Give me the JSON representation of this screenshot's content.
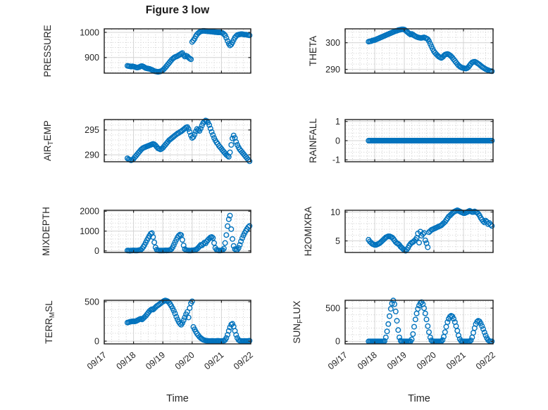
{
  "title": "Figure 3 low",
  "xlabel": "Time",
  "colors": {
    "marker": "#0072BD",
    "grid_major": "#d4d4d4",
    "grid_minor": "#c0c0c0",
    "axis": "#1f1f1f",
    "text": "#262626",
    "background": "#ffffff"
  },
  "chart_data": {
    "type": "scatter",
    "marker": "open-circle",
    "x_axis": {
      "label": "Time",
      "tick_labels": [
        "09/17",
        "09/18",
        "09/19",
        "09/20",
        "09/21",
        "09/22"
      ],
      "tick_values": [
        0,
        1,
        2,
        3,
        4,
        5
      ],
      "xlim": [
        0,
        5
      ],
      "minor_step": 0.25,
      "tick_label_rotation_deg": -40
    },
    "sample_t0": 0.7917,
    "sample_dt": 0.0416667,
    "subplots": [
      {
        "name": "PRESSURE",
        "label_parts": [
          {
            "text": "PRESSURE",
            "sub": false
          }
        ],
        "row": 0,
        "col": 0,
        "ylim": [
          838,
          1014
        ],
        "ytick_values": [
          900,
          1000
        ],
        "ytick_labels": [
          "900",
          "1000"
        ],
        "yminor_step": 20,
        "values": [
          867,
          866,
          865,
          864,
          865,
          864,
          863,
          861,
          860,
          861,
          863,
          865,
          866,
          864,
          861,
          858,
          857,
          856,
          855,
          853,
          851,
          849,
          846,
          845,
          844,
          843,
          844,
          845,
          847,
          850,
          855,
          860,
          866,
          872,
          878,
          884,
          890,
          895,
          899,
          902,
          904,
          906,
          909,
          912,
          915,
          918,
          910,
          904,
          907,
          905,
          900,
          896,
          893,
          962,
          968,
          975,
          985,
          992,
          997,
          1001,
          1004,
          1005,
          1006,
          1006,
          1005,
          1005,
          1004,
          1004,
          1003,
          1003,
          1002,
          1002,
          1001,
          1001,
          1000,
          1000,
          1000,
          999,
          997,
          993,
          988,
          978,
          966,
          955,
          948,
          952,
          960,
          970,
          979,
          985,
          989,
          991,
          992,
          993,
          993,
          992,
          991,
          991,
          990,
          989,
          988
        ]
      },
      {
        "name": "THETA",
        "label_parts": [
          {
            "text": "THETA",
            "sub": false
          }
        ],
        "row": 0,
        "col": 1,
        "ylim": [
          288.6,
          305.2
        ],
        "ytick_values": [
          290,
          300
        ],
        "ytick_labels": [
          "290",
          "300"
        ],
        "yminor_step": 2,
        "values": [
          300.4,
          300.5,
          300.6,
          300.8,
          300.9,
          301.0,
          301.2,
          301.4,
          301.6,
          301.8,
          302.0,
          302.2,
          302.4,
          302.6,
          302.8,
          303.0,
          303.2,
          303.4,
          303.6,
          303.8,
          304.0,
          304.2,
          304.4,
          304.5,
          304.7,
          304.8,
          304.9,
          305.0,
          305.0,
          304.9,
          304.6,
          304.2,
          303.8,
          303.4,
          303.1,
          303.3,
          303.0,
          302.7,
          302.4,
          302.2,
          302.0,
          301.9,
          301.8,
          301.8,
          301.9,
          302.0,
          301.8,
          301.6,
          301.3,
          300.6,
          299.6,
          298.6,
          297.7,
          296.8,
          296.2,
          295.7,
          295.2,
          294.8,
          294.5,
          294.3,
          294.6,
          295.1,
          295.5,
          295.7,
          295.8,
          295.6,
          295.3,
          294.9,
          294.4,
          293.8,
          293.2,
          292.6,
          292.0,
          291.5,
          291.1,
          290.8,
          290.6,
          290.5,
          290.4,
          290.3,
          290.5,
          290.9,
          291.5,
          292.1,
          292.6,
          292.8,
          292.9,
          292.7,
          292.4,
          292.1,
          291.8,
          291.4,
          291.0,
          290.7,
          290.4,
          290.1,
          289.9,
          289.7,
          289.5,
          289.4,
          289.3
        ]
      },
      {
        "name": "AIR_TEMP",
        "label_parts": [
          {
            "text": "AIR",
            "sub": false
          },
          {
            "text": "T",
            "sub": true
          },
          {
            "text": "EMP",
            "sub": false
          }
        ],
        "row": 1,
        "col": 0,
        "ylim": [
          288.6,
          297.1
        ],
        "ytick_values": [
          290,
          295
        ],
        "ytick_labels": [
          "290",
          "295"
        ],
        "yminor_step": 1,
        "values": [
          289.3,
          289.1,
          289.0,
          288.9,
          289.0,
          289.2,
          289.5,
          289.8,
          290.1,
          290.4,
          290.7,
          291.0,
          291.2,
          291.4,
          291.5,
          291.6,
          291.7,
          291.8,
          291.9,
          292.0,
          292.1,
          292.2,
          292.1,
          291.9,
          291.6,
          291.3,
          291.2,
          291.1,
          291.2,
          291.4,
          291.7,
          292.0,
          292.3,
          292.6,
          292.9,
          293.1,
          293.3,
          293.5,
          293.7,
          293.9,
          294.1,
          294.3,
          294.4,
          294.6,
          294.7,
          294.9,
          295.1,
          295.3,
          295.5,
          295.6,
          295.2,
          294.6,
          293.9,
          293.4,
          293.6,
          294.1,
          294.7,
          295.2,
          295.0,
          294.8,
          295.3,
          295.9,
          296.4,
          296.7,
          296.9,
          296.8,
          296.5,
          296.0,
          295.3,
          294.6,
          294.0,
          293.4,
          292.9,
          292.5,
          292.2,
          291.8,
          291.5,
          291.2,
          290.9,
          290.6,
          290.3,
          290.0,
          289.8,
          289.6,
          290.5,
          292.0,
          293.3,
          293.9,
          293.4,
          292.6,
          292.0,
          291.5,
          291.1,
          290.8,
          290.5,
          290.2,
          289.9,
          289.6,
          289.3,
          289.0,
          288.7
        ]
      },
      {
        "name": "RAINFALL",
        "label_parts": [
          {
            "text": "RAINFALL",
            "sub": false
          }
        ],
        "row": 1,
        "col": 1,
        "ylim": [
          -1.1,
          1.1
        ],
        "ytick_values": [
          -1,
          0,
          1
        ],
        "ytick_labels": [
          "-1",
          "0",
          "1"
        ],
        "yminor_step": 0.2,
        "values": [
          0,
          0,
          0,
          0,
          0,
          0,
          0,
          0,
          0,
          0,
          0,
          0,
          0,
          0,
          0,
          0,
          0,
          0,
          0,
          0,
          0,
          0,
          0,
          0,
          0,
          0,
          0,
          0,
          0,
          0,
          0,
          0,
          0,
          0,
          0,
          0,
          0,
          0,
          0,
          0,
          0,
          0,
          0,
          0,
          0,
          0,
          0,
          0,
          0,
          0,
          0,
          0,
          0,
          0,
          0,
          0,
          0,
          0,
          0,
          0,
          0,
          0,
          0,
          0,
          0,
          0,
          0,
          0,
          0,
          0,
          0,
          0,
          0,
          0,
          0,
          0,
          0,
          0,
          0,
          0,
          0,
          0,
          0,
          0,
          0,
          0,
          0,
          0,
          0,
          0,
          0,
          0,
          0,
          0,
          0,
          0,
          0,
          0,
          0,
          0,
          0
        ]
      },
      {
        "name": "MIXDEPTH",
        "label_parts": [
          {
            "text": "MIXDEPTH",
            "sub": false
          }
        ],
        "row": 2,
        "col": 0,
        "ylim": [
          -80,
          2050
        ],
        "ytick_values": [
          0,
          1000,
          2000
        ],
        "ytick_labels": [
          "0",
          "1000",
          "2000"
        ],
        "yminor_step": 200,
        "values": [
          20,
          15,
          10,
          15,
          20,
          25,
          20,
          15,
          20,
          30,
          40,
          60,
          120,
          200,
          300,
          420,
          540,
          650,
          760,
          860,
          900,
          700,
          430,
          180,
          60,
          30,
          20,
          15,
          15,
          20,
          20,
          25,
          20,
          25,
          30,
          40,
          90,
          180,
          300,
          430,
          560,
          680,
          770,
          820,
          800,
          560,
          280,
          90,
          40,
          25,
          20,
          15,
          20,
          25,
          30,
          40,
          60,
          100,
          160,
          230,
          300,
          280,
          350,
          420,
          380,
          480,
          560,
          620,
          680,
          700,
          650,
          400,
          150,
          60,
          30,
          20,
          20,
          25,
          40,
          120,
          400,
          800,
          1250,
          1600,
          1780,
          1100,
          600,
          250,
          90,
          40,
          60,
          150,
          300,
          480,
          640,
          780,
          900,
          1010,
          1110,
          1200,
          1260
        ]
      },
      {
        "name": "H2OMIXRA",
        "label_parts": [
          {
            "text": "H2OMIXRA",
            "sub": false
          }
        ],
        "row": 2,
        "col": 1,
        "ylim": [
          3.0,
          10.3
        ],
        "ytick_values": [
          5,
          10
        ],
        "ytick_labels": [
          "5",
          "10"
        ],
        "yminor_step": 1,
        "values": [
          5.2,
          4.9,
          4.7,
          4.5,
          4.4,
          4.3,
          4.3,
          4.4,
          4.5,
          4.6,
          4.8,
          5.0,
          5.2,
          5.4,
          5.6,
          5.7,
          5.8,
          5.8,
          5.7,
          5.6,
          5.4,
          5.1,
          4.8,
          4.6,
          4.5,
          4.3,
          4.0,
          3.8,
          3.6,
          3.4,
          3.3,
          3.5,
          3.8,
          4.2,
          4.5,
          4.7,
          4.8,
          5.0,
          5.2,
          5.5,
          6.3,
          4.7,
          6.6,
          5.9,
          6.2,
          6.4,
          5.1,
          4.6,
          3.9,
          6.5,
          6.7,
          6.9,
          7.0,
          7.1,
          7.2,
          7.3,
          7.4,
          7.5,
          7.6,
          7.7,
          7.9,
          8.1,
          8.3,
          8.6,
          8.9,
          9.2,
          9.4,
          9.6,
          9.8,
          10.0,
          10.1,
          10.2,
          10.3,
          10.2,
          10.1,
          10.0,
          9.9,
          9.8,
          9.8,
          9.9,
          10.0,
          10.1,
          10.2,
          10.1,
          10.0,
          10.0,
          10.1,
          10.0,
          9.9,
          9.7,
          9.4,
          9.0,
          8.7,
          8.4,
          8.2,
          8.5,
          8.3,
          7.9,
          8.1,
          7.8,
          7.6
        ]
      },
      {
        "name": "TERR_MSL",
        "label_parts": [
          {
            "text": "TERR",
            "sub": false
          },
          {
            "text": "M",
            "sub": true
          },
          {
            "text": "SL",
            "sub": false
          }
        ],
        "row": 3,
        "col": 0,
        "ylim": [
          -35,
          518
        ],
        "ytick_values": [
          0,
          500
        ],
        "ytick_labels": [
          "0",
          "500"
        ],
        "yminor_step": 100,
        "values": [
          235,
          240,
          245,
          248,
          250,
          252,
          250,
          255,
          262,
          270,
          278,
          283,
          275,
          290,
          305,
          320,
          340,
          360,
          380,
          395,
          405,
          400,
          415,
          430,
          445,
          455,
          465,
          478,
          490,
          500,
          510,
          515,
          512,
          505,
          490,
          470,
          445,
          415,
          385,
          350,
          310,
          275,
          245,
          222,
          208,
          230,
          265,
          300,
          340,
          370,
          300,
          420,
          480,
          505,
          180,
          150,
          120,
          95,
          75,
          55,
          40,
          28,
          18,
          12,
          8,
          5,
          3,
          2,
          2,
          3,
          3,
          2,
          2,
          3,
          4,
          3,
          2,
          2,
          3,
          5,
          15,
          40,
          80,
          130,
          175,
          210,
          220,
          185,
          130,
          80,
          40,
          15,
          5,
          3,
          2,
          2,
          3,
          2,
          2,
          3,
          5
        ]
      },
      {
        "name": "SUN_FLUX",
        "label_parts": [
          {
            "text": "SUN",
            "sub": false
          },
          {
            "text": "F",
            "sub": true
          },
          {
            "text": "LUX",
            "sub": false
          }
        ],
        "row": 3,
        "col": 1,
        "ylim": [
          -38,
          618
        ],
        "ytick_values": [
          0,
          500
        ],
        "ytick_labels": [
          "0",
          "500"
        ],
        "yminor_step": 100,
        "values": [
          0,
          0,
          0,
          0,
          0,
          0,
          0,
          0,
          0,
          0,
          0,
          0,
          0,
          5,
          60,
          150,
          260,
          380,
          490,
          570,
          615,
          560,
          450,
          310,
          170,
          60,
          10,
          0,
          0,
          0,
          0,
          0,
          0,
          0,
          0,
          30,
          110,
          220,
          330,
          420,
          490,
          540,
          575,
          590,
          560,
          500,
          420,
          330,
          230,
          140,
          60,
          15,
          0,
          0,
          0,
          0,
          0,
          0,
          0,
          0,
          20,
          70,
          140,
          220,
          290,
          340,
          370,
          385,
          375,
          340,
          290,
          230,
          160,
          90,
          35,
          8,
          0,
          0,
          0,
          0,
          0,
          0,
          0,
          15,
          60,
          130,
          200,
          260,
          295,
          310,
          300,
          270,
          230,
          185,
          135,
          90,
          50,
          20,
          5,
          0,
          0
        ]
      }
    ]
  }
}
